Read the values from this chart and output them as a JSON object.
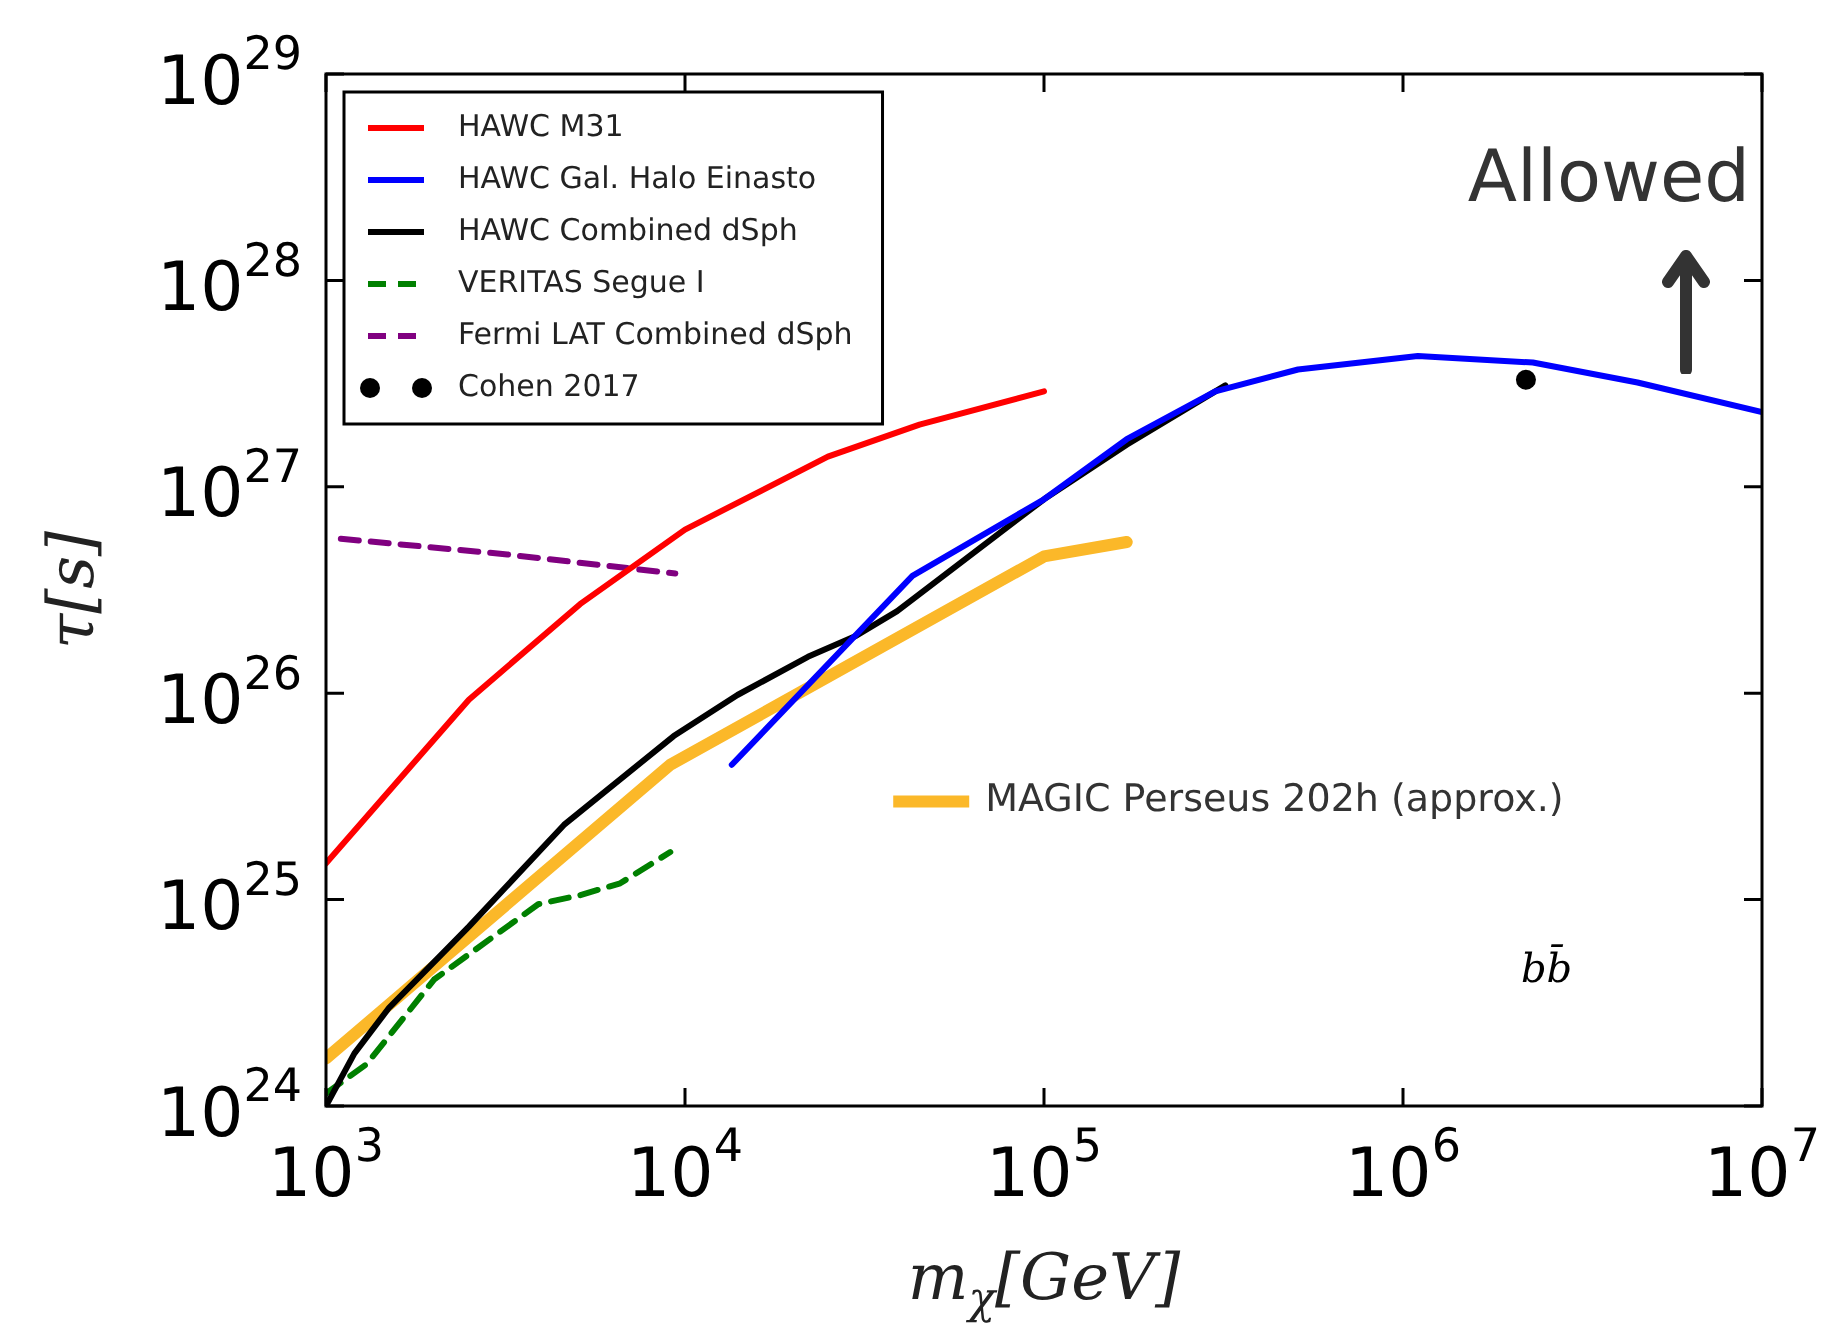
{
  "chart_data": {
    "type": "line",
    "xlabel": "m$_{χ}$[GeV]",
    "ylabel": "τ[s]",
    "log": "xy",
    "grid": false,
    "legend": "top left",
    "xlim": [
      1000,
      10000000
    ],
    "xticks": [
      {
        "value": 1000,
        "label": "10$^{3}$"
      },
      {
        "value": 10000,
        "label": "10$^{4}$"
      },
      {
        "value": 100000,
        "label": "10$^{5}$"
      },
      {
        "value": 1000000,
        "label": "10$^{6}$"
      },
      {
        "value": 10000000,
        "label": "10$^{7}$"
      }
    ],
    "ylim": [
      1e+24,
      1e+29
    ],
    "yticks": [
      {
        "value": 1e+24,
        "label": "10$^{24}$"
      },
      {
        "value": 1e+25,
        "label": "10$^{25}$"
      },
      {
        "value": 1e+26,
        "label": "10$^{26}$"
      },
      {
        "value": 1e+27,
        "label": "10$^{27}$"
      },
      {
        "value": 1e+28,
        "label": "10$^{28}$"
      },
      {
        "value": 1e+29,
        "label": "10$^{29}$"
      }
    ],
    "annotations": [
      "Allowed",
      "bb̄"
    ],
    "series": [
      {
        "name": "HAWC M31",
        "color": "#ff0000",
        "x": [
          1000,
          2500,
          5100,
          10000,
          25000,
          45000,
          100000
        ],
        "values": [
          1.5e+25,
          9.3e+25,
          2.7e+26,
          6.2e+26,
          1.4e+27,
          2e+27,
          2.9e+27
        ]
      },
      {
        "name": "HAWC Gal. Halo Einasto",
        "color": "#0000ff",
        "x": [
          13500,
          43000,
          100000,
          170000,
          300000,
          510000,
          1100000,
          2300000,
          4500000,
          10000000
        ],
        "values": [
          4.5e+25,
          3.7e+26,
          8.7e+26,
          1.7e+27,
          2.9e+27,
          3.7e+27,
          4.3e+27,
          4e+27,
          3.2e+27,
          2.3e+27
        ]
      },
      {
        "name": "HAWC Combined dSph",
        "color": "#000000",
        "x": [
          1000,
          1200,
          1500,
          2500,
          4600,
          9300,
          14000,
          22000,
          30000,
          39000,
          100000,
          170000,
          320000
        ],
        "values": [
          1e+24,
          1.8e+24,
          3e+24,
          7.4e+24,
          2.3e+25,
          6.2e+25,
          9.8e+25,
          1.5e+26,
          1.9e+26,
          2.5e+26,
          8.7e+26,
          1.6e+27,
          3.1e+27
        ]
      },
      {
        "name": "VERITAS Segue I",
        "color": "#008000",
        "line_style": "dashed",
        "x": [
          1000,
          1300,
          2000,
          3900,
          5100,
          6600,
          9100
        ],
        "values": [
          1.15e+24,
          1.6e+24,
          4.1e+24,
          9.5e+24,
          1.05e+25,
          1.2e+25,
          1.7e+25
        ]
      },
      {
        "name": "Fermi LAT Combined dSph",
        "color": "#800080",
        "line_style": "dashed",
        "x": [
          1100,
          3200,
          9400
        ],
        "values": [
          5.6e+26,
          4.7e+26,
          3.8e+26
        ]
      },
      {
        "name": "Cohen 2017",
        "color": "#000000",
        "type": "scatter",
        "marker": "circle",
        "x": [
          2200000
        ],
        "values": [
          3.3e+27
        ]
      },
      {
        "name": "MAGIC Perseus 202h (approx.)",
        "color": "#fbb829",
        "x": [
          1000,
          9100,
          100000,
          170000
        ],
        "values": [
          1.7e+24,
          4.5e+25,
          4.6e+26,
          5.4e+26
        ]
      }
    ]
  }
}
